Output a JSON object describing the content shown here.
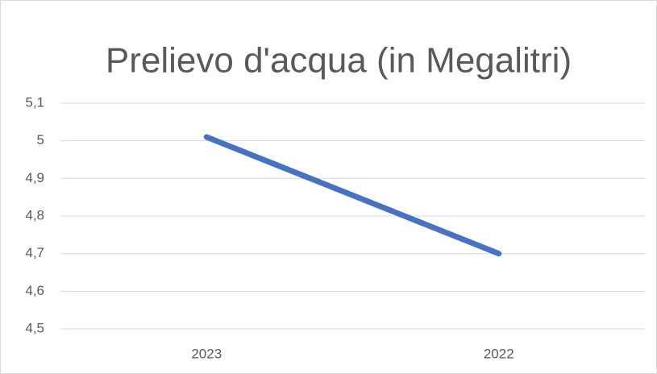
{
  "chart_data": {
    "type": "line",
    "title": "Prelievo d'acqua (in Megalitri)",
    "categories": [
      "2023",
      "2022"
    ],
    "series": [
      {
        "name": "Prelievo d'acqua",
        "color": "#4472c4",
        "values": [
          5.01,
          4.7
        ]
      }
    ],
    "ylim": [
      4.5,
      5.1
    ],
    "yticks": [
      {
        "value": 4.5,
        "label": "4,5"
      },
      {
        "value": 4.6,
        "label": "4,6"
      },
      {
        "value": 4.7,
        "label": "4,7"
      },
      {
        "value": 4.8,
        "label": "4,8"
      },
      {
        "value": 4.9,
        "label": "4,9"
      },
      5,
      {
        "value": 5.1,
        "label": "5,1"
      }
    ],
    "grid": true
  }
}
